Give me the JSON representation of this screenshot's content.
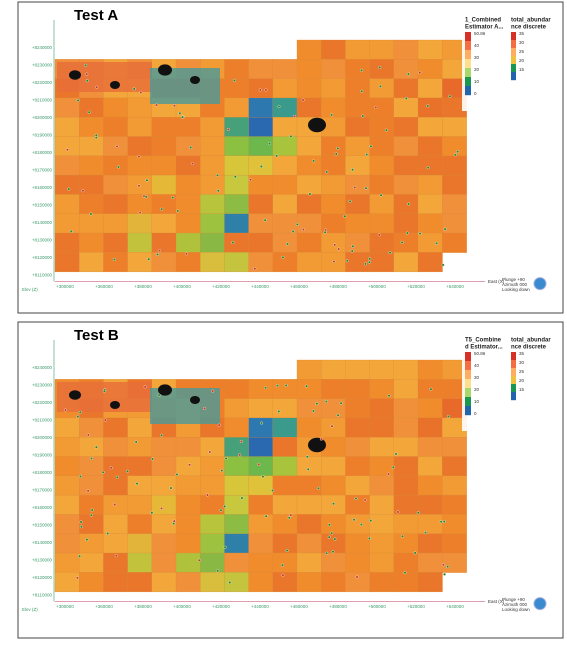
{
  "panels": [
    {
      "title": "Test A",
      "legend_1": {
        "title": [
          "1_Combined",
          "Estimator A..."
        ],
        "ticks": [
          "50.86",
          "40",
          "30",
          "20",
          "10",
          "0"
        ]
      },
      "legend_2": {
        "title": [
          "total_abundar",
          "nce discrete"
        ],
        "ticks": [
          "35",
          "30",
          "25",
          "20",
          "15"
        ]
      },
      "y_labels": [
        "+8240000",
        "+8230000",
        "+8220000",
        "+8210000",
        "+8200000",
        "+8190000",
        "+8180000",
        "+8170000",
        "+8160000",
        "+8150000",
        "+8140000",
        "+8130000",
        "+8120000",
        "+8110000"
      ],
      "x_labels": [
        "+300000",
        "+360000",
        "+380000",
        "+400000",
        "+420000",
        "+440000",
        "+460000",
        "+480000",
        "+500000",
        "+520000",
        "+540000"
      ],
      "elev": "Elev (Z)",
      "east": "East (X)",
      "view": [
        "Plunge +90",
        "Azimuth 000",
        "Looking down"
      ]
    },
    {
      "title": "Test B",
      "legend_1": {
        "title": [
          "T5_Combine",
          "d Estimator..."
        ],
        "ticks": [
          "50.86",
          "40",
          "30",
          "20",
          "10",
          "0"
        ]
      },
      "legend_2": {
        "title": [
          "total_abundar",
          "nce discrete"
        ],
        "ticks": [
          "35",
          "30",
          "25",
          "20",
          "15"
        ]
      },
      "y_labels": [
        "+8240000",
        "+8230000",
        "+8220000",
        "+8210000",
        "+8200000",
        "+8190000",
        "+8180000",
        "+8170000",
        "+8160000",
        "+8150000",
        "+8140000",
        "+8130000",
        "+8120000",
        "+8110000"
      ],
      "x_labels": [
        "+300000",
        "+360000",
        "+380000",
        "+400000",
        "+420000",
        "+440000",
        "+460000",
        "+480000",
        "+500000",
        "+520000",
        "+540000"
      ],
      "elev": "Elev (Z)",
      "east": "East (X)",
      "view": [
        "Plunge +90",
        "Azimuth 000",
        "Looking down"
      ]
    }
  ]
}
